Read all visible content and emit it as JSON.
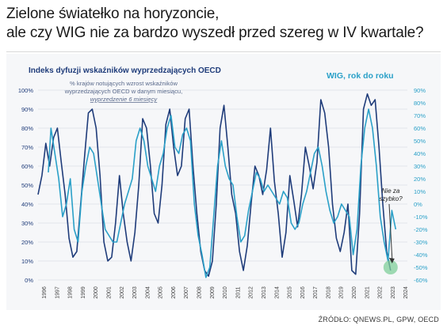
{
  "headline": {
    "line1": "Zielone światełko na horyzoncie,",
    "line2": "ale czy WIG nie za bardzo wyszedł przed szereg w IV kwartale?"
  },
  "source": "ŹRÓDŁO: QNEWS.PL, GPW, OECD",
  "chart_data": {
    "type": "line",
    "title": "Indeks dyfuzji wskaźników wyprzedzających OECD",
    "x_ticks": [
      "1996",
      "1997",
      "1998",
      "1999",
      "2000",
      "2001",
      "2002",
      "2003",
      "2004",
      "2005",
      "2006",
      "2007",
      "2008",
      "2009",
      "2010",
      "2011",
      "2012",
      "2013",
      "2014",
      "2015",
      "2016",
      "2017",
      "2018",
      "2019",
      "2020",
      "2021",
      "2022",
      "2023",
      "2024"
    ],
    "xlim": [
      1996,
      2024.6
    ],
    "left_axis": {
      "ylim": [
        0,
        100
      ],
      "ticks": [
        "0%",
        "10%",
        "20%",
        "30%",
        "40%",
        "50%",
        "60%",
        "70%",
        "80%",
        "90%",
        "100%"
      ]
    },
    "right_axis": {
      "ylim": [
        -60,
        90
      ],
      "ticks": [
        "-60%",
        "-50%",
        "-40%",
        "-30%",
        "-20%",
        "-10%",
        "0%",
        "10%",
        "20%",
        "30%",
        "40%",
        "50%",
        "60%",
        "70%",
        "80%",
        "90%"
      ]
    },
    "grid": true,
    "series": [
      {
        "name": "% krajów notujących wzrost wskaźników wyprzedzających OECD w danym miesiącu, wyprzedzenie 6 miesięcy",
        "label_lines": [
          "% krajów notujących wzrost wskaźników",
          "wyprzedzających OECD w danym miesiącu,",
          "wyprzedzenie 6 miesięcy"
        ],
        "axis": "left",
        "color": "#1f3c7a",
        "x": [
          1996.0,
          1996.3,
          1996.6,
          1996.9,
          1997.2,
          1997.5,
          1997.8,
          1998.1,
          1998.4,
          1998.7,
          1999.0,
          1999.3,
          1999.6,
          1999.9,
          2000.2,
          2000.5,
          2000.8,
          2001.1,
          2001.4,
          2001.7,
          2002.0,
          2002.3,
          2002.6,
          2002.9,
          2003.2,
          2003.5,
          2003.8,
          2004.1,
          2004.4,
          2004.7,
          2005.0,
          2005.3,
          2005.6,
          2005.9,
          2006.2,
          2006.5,
          2006.8,
          2007.1,
          2007.4,
          2007.7,
          2008.0,
          2008.3,
          2008.6,
          2008.9,
          2009.2,
          2009.5,
          2009.8,
          2010.1,
          2010.4,
          2010.7,
          2011.0,
          2011.3,
          2011.6,
          2011.9,
          2012.2,
          2012.5,
          2012.8,
          2013.1,
          2013.4,
          2013.7,
          2014.0,
          2014.3,
          2014.6,
          2014.9,
          2015.2,
          2015.5,
          2015.8,
          2016.1,
          2016.4,
          2016.7,
          2017.0,
          2017.3,
          2017.6,
          2017.9,
          2018.2,
          2018.5,
          2018.8,
          2019.1,
          2019.4,
          2019.7,
          2020.0,
          2020.3,
          2020.6,
          2020.9,
          2021.2,
          2021.5,
          2021.8,
          2022.1,
          2022.4,
          2022.7,
          2023.0,
          2023.3
        ],
        "y": [
          45,
          55,
          72,
          60,
          75,
          80,
          62,
          45,
          22,
          12,
          15,
          40,
          65,
          88,
          90,
          80,
          55,
          20,
          10,
          12,
          30,
          55,
          35,
          20,
          10,
          25,
          50,
          85,
          80,
          60,
          35,
          30,
          50,
          82,
          90,
          70,
          55,
          60,
          85,
          90,
          60,
          35,
          15,
          5,
          2,
          10,
          40,
          80,
          92,
          70,
          45,
          35,
          15,
          5,
          18,
          40,
          60,
          55,
          45,
          58,
          80,
          52,
          35,
          12,
          25,
          55,
          42,
          28,
          45,
          70,
          60,
          48,
          62,
          95,
          88,
          70,
          40,
          22,
          15,
          25,
          40,
          5,
          3,
          35,
          90,
          98,
          92,
          95,
          70,
          40,
          15,
          5
        ]
      },
      {
        "name": "WIG, rok do roku",
        "axis": "right",
        "color": "#2aa0c8",
        "x": [
          1996.8,
          1997.0,
          1997.3,
          1997.6,
          1997.9,
          1998.2,
          1998.5,
          1998.8,
          1999.1,
          1999.4,
          1999.7,
          2000.0,
          2000.3,
          2000.6,
          2000.9,
          2001.2,
          2001.5,
          2001.8,
          2002.1,
          2002.4,
          2002.7,
          2003.0,
          2003.3,
          2003.6,
          2003.9,
          2004.2,
          2004.5,
          2004.8,
          2005.1,
          2005.4,
          2005.7,
          2006.0,
          2006.3,
          2006.6,
          2006.9,
          2007.2,
          2007.5,
          2007.8,
          2008.1,
          2008.4,
          2008.7,
          2009.0,
          2009.3,
          2009.6,
          2009.9,
          2010.2,
          2010.5,
          2010.8,
          2011.1,
          2011.4,
          2011.7,
          2012.0,
          2012.3,
          2012.6,
          2012.9,
          2013.2,
          2013.5,
          2013.8,
          2014.1,
          2014.4,
          2014.7,
          2015.0,
          2015.3,
          2015.6,
          2015.9,
          2016.2,
          2016.5,
          2016.8,
          2017.1,
          2017.4,
          2017.7,
          2018.0,
          2018.3,
          2018.6,
          2018.9,
          2019.2,
          2019.5,
          2019.8,
          2020.1,
          2020.4,
          2020.7,
          2021.0,
          2021.3,
          2021.6,
          2021.9,
          2022.2,
          2022.5,
          2022.8,
          2023.1,
          2023.4,
          2023.7
        ],
        "y": [
          25,
          60,
          40,
          20,
          -10,
          0,
          20,
          -20,
          -30,
          10,
          30,
          45,
          40,
          20,
          0,
          -20,
          -25,
          -30,
          -30,
          -15,
          0,
          10,
          20,
          50,
          60,
          50,
          30,
          20,
          10,
          30,
          40,
          60,
          70,
          45,
          40,
          55,
          60,
          50,
          0,
          -25,
          -40,
          -58,
          -50,
          -10,
          30,
          50,
          30,
          20,
          15,
          -10,
          -30,
          -25,
          -5,
          10,
          25,
          20,
          10,
          15,
          10,
          5,
          0,
          10,
          5,
          -15,
          -20,
          -15,
          0,
          10,
          25,
          40,
          45,
          30,
          10,
          -5,
          -15,
          -10,
          0,
          -5,
          -10,
          -40,
          -20,
          30,
          60,
          75,
          60,
          30,
          -10,
          -30,
          -45,
          -5,
          -20
        ]
      }
    ],
    "annotation": "Nie za\nszybko?"
  }
}
